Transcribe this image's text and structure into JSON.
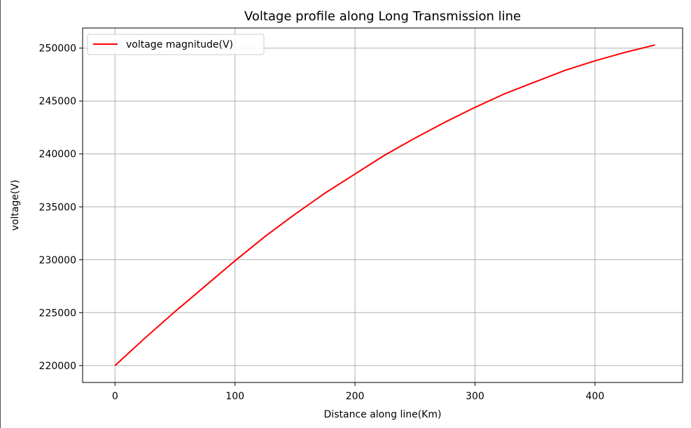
{
  "chart_data": {
    "type": "line",
    "title": "Voltage profile along Long Transmission line",
    "xlabel": "Distance along line(Km)",
    "ylabel": "voltage(V)",
    "xlim": [
      -27,
      473
    ],
    "ylim": [
      218400,
      251900
    ],
    "xticks": [
      0,
      100,
      200,
      300,
      400
    ],
    "yticks": [
      220000,
      225000,
      230000,
      235000,
      240000,
      245000,
      250000
    ],
    "grid": true,
    "legend_position": "top-left",
    "series": [
      {
        "name": "voltage magnitude(V)",
        "color": "#ff0000",
        "x": [
          0,
          25,
          50,
          75,
          100,
          125,
          150,
          175,
          200,
          225,
          250,
          275,
          300,
          325,
          350,
          375,
          400,
          425,
          450
        ],
        "y": [
          220000,
          222600,
          225100,
          227500,
          229900,
          232200,
          234300,
          236300,
          238100,
          239900,
          241500,
          243000,
          244400,
          245700,
          246800,
          247900,
          248800,
          249600,
          250300
        ]
      }
    ]
  }
}
